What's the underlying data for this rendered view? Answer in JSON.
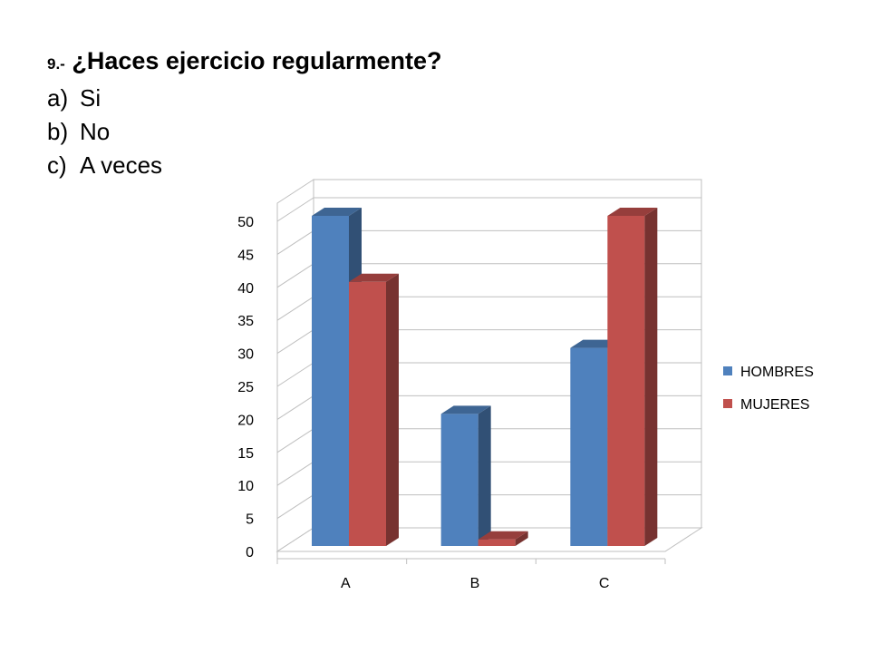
{
  "question": {
    "number": "9.-",
    "text": "¿Haces ejercicio regularmente?"
  },
  "options": [
    {
      "letter": "a)",
      "text": "Si"
    },
    {
      "letter": "b)",
      "text": "No"
    },
    {
      "letter": "c)",
      "text": "A veces"
    }
  ],
  "chart_data": {
    "type": "bar",
    "categories": [
      "A",
      "B",
      "C"
    ],
    "series": [
      {
        "name": "HOMBRES",
        "values": [
          50,
          20,
          30
        ],
        "color": "#4F81BD"
      },
      {
        "name": "MUJERES",
        "values": [
          40,
          1,
          50
        ],
        "color": "#C0504D"
      }
    ],
    "ylim": [
      0,
      50
    ],
    "yticks": [
      0,
      5,
      10,
      15,
      20,
      25,
      30,
      35,
      40,
      45,
      50
    ],
    "grid": true,
    "legend_position": "right",
    "style": "3d-clustered-column"
  }
}
